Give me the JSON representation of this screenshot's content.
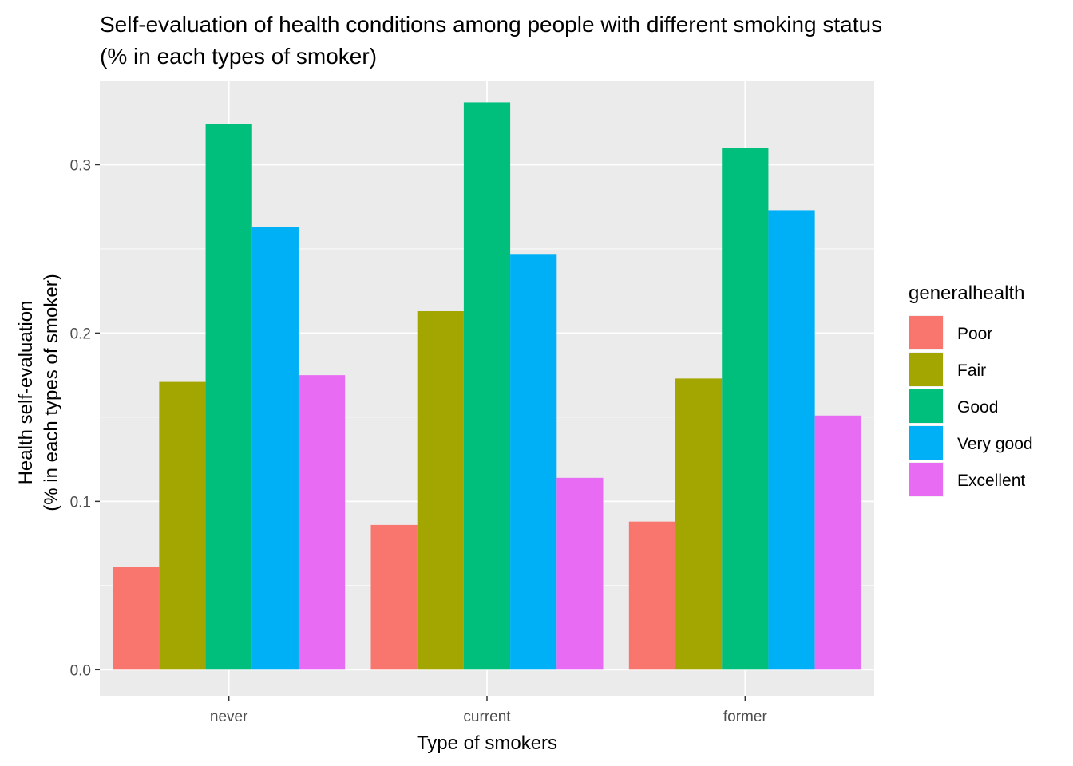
{
  "chart_data": {
    "type": "bar",
    "title_lines": [
      "Self-evaluation of health conditions among people with different smoking status",
      "(% in each types of smoker)"
    ],
    "xlabel": "Type of smokers",
    "ylabel_lines": [
      "Health self-evaluation",
      "(% in each types of smoker)"
    ],
    "categories": [
      "never",
      "current",
      "former"
    ],
    "ylim": [
      -0.0155,
      0.35
    ],
    "yticks": [
      0.0,
      0.1,
      0.2,
      0.3
    ],
    "ytick_labels": [
      "0.0",
      "0.1",
      "0.2",
      "0.3"
    ],
    "legend": {
      "title": "generalhealth",
      "position": "right"
    },
    "grid": true,
    "series": [
      {
        "name": "Poor",
        "color": "#F8766D",
        "values": [
          0.061,
          0.086,
          0.088
        ]
      },
      {
        "name": "Fair",
        "color": "#A3A500",
        "values": [
          0.171,
          0.213,
          0.173
        ]
      },
      {
        "name": "Good",
        "color": "#00BF7D",
        "values": [
          0.324,
          0.337,
          0.31
        ]
      },
      {
        "name": "Very good",
        "color": "#00B0F6",
        "values": [
          0.263,
          0.247,
          0.273
        ]
      },
      {
        "name": "Excellent",
        "color": "#E76BF3",
        "values": [
          0.175,
          0.114,
          0.151
        ]
      }
    ]
  }
}
